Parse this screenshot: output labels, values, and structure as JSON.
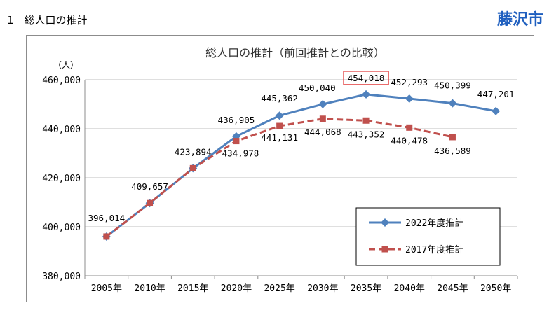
{
  "page": {
    "heading": "1　総人口の推計",
    "city": "藤沢市"
  },
  "chart_data": {
    "type": "line",
    "title": "総人口の推計（前回推計との比較）",
    "unit_label": "（人）",
    "categories": [
      "2005年",
      "2010年",
      "2015年",
      "2020年",
      "2025年",
      "2030年",
      "2035年",
      "2040年",
      "2045年",
      "2050年"
    ],
    "ylim": [
      380000,
      460000
    ],
    "yticks": [
      "380,000",
      "400,000",
      "420,000",
      "440,000",
      "460,000"
    ],
    "ytick_values": [
      380000,
      400000,
      420000,
      440000,
      460000
    ],
    "grid": true,
    "legend_position": "bottom-right",
    "highlight": "454,018",
    "series": [
      {
        "name": "2022年度推計",
        "color": "#4f81bd",
        "style": "solid",
        "marker": "diamond",
        "values": [
          396014,
          409657,
          423894,
          436905,
          445362,
          450040,
          454018,
          452293,
          450399,
          447201
        ],
        "labels": [
          "396,014",
          "409,657",
          "423,894",
          "436,905",
          "445,362",
          "450,040",
          "454,018",
          "452,293",
          "450,399",
          "447,201"
        ]
      },
      {
        "name": "2017年度推計",
        "color": "#c0504d",
        "style": "dashed",
        "marker": "square",
        "values": [
          396014,
          409657,
          423894,
          434978,
          441131,
          444068,
          443352,
          440478,
          436589,
          null
        ],
        "labels": [
          "",
          "",
          "",
          "434,978",
          "441,131",
          "444,068",
          "443,352",
          "440,478",
          "436,589",
          ""
        ]
      }
    ]
  }
}
